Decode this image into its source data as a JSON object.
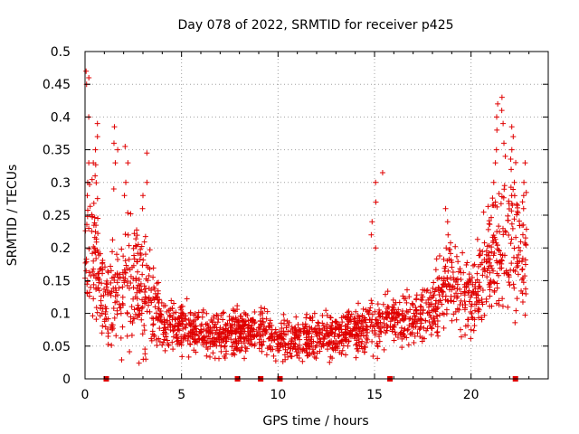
{
  "chart_data": {
    "type": "scatter",
    "title": "Day 078 of 2022, SRMTID for receiver p425",
    "xlabel": "GPS time / hours",
    "ylabel": "SRMTID / TECUs",
    "xlim": [
      0,
      24
    ],
    "ylim": [
      0,
      0.5
    ],
    "grid": true,
    "legend": "none",
    "marker": "plus",
    "color": "#e00000",
    "x_ticks": [
      0,
      5,
      10,
      15,
      20
    ],
    "x_tick_labels": [
      "0",
      "5",
      "10",
      "15",
      "20"
    ],
    "y_ticks": [
      0,
      0.05,
      0.1,
      0.15,
      0.2,
      0.25,
      0.3,
      0.35,
      0.4,
      0.45,
      0.5
    ],
    "y_tick_labels": [
      "0",
      "0.05",
      "0.1",
      "0.15",
      "0.2",
      "0.25",
      "0.3",
      "0.35",
      "0.4",
      "0.45",
      "0.5"
    ],
    "data_gaps_at_zero": [
      1.1,
      7.9,
      9.1,
      10.1,
      15.8,
      22.3
    ],
    "profile": [
      {
        "x": 0.0,
        "y": 0.19,
        "spread": 0.07
      },
      {
        "x": 0.5,
        "y": 0.2,
        "spread": 0.09
      },
      {
        "x": 1.0,
        "y": 0.12,
        "spread": 0.06
      },
      {
        "x": 1.5,
        "y": 0.13,
        "spread": 0.07
      },
      {
        "x": 2.0,
        "y": 0.13,
        "spread": 0.07
      },
      {
        "x": 2.5,
        "y": 0.16,
        "spread": 0.08
      },
      {
        "x": 3.0,
        "y": 0.14,
        "spread": 0.08
      },
      {
        "x": 3.5,
        "y": 0.11,
        "spread": 0.05
      },
      {
        "x": 4.0,
        "y": 0.08,
        "spread": 0.03
      },
      {
        "x": 5.0,
        "y": 0.08,
        "spread": 0.03
      },
      {
        "x": 6.0,
        "y": 0.07,
        "spread": 0.025
      },
      {
        "x": 7.0,
        "y": 0.065,
        "spread": 0.025
      },
      {
        "x": 8.0,
        "y": 0.07,
        "spread": 0.025
      },
      {
        "x": 9.0,
        "y": 0.075,
        "spread": 0.025
      },
      {
        "x": 10.0,
        "y": 0.06,
        "spread": 0.025
      },
      {
        "x": 11.0,
        "y": 0.055,
        "spread": 0.025
      },
      {
        "x": 12.0,
        "y": 0.065,
        "spread": 0.025
      },
      {
        "x": 13.0,
        "y": 0.07,
        "spread": 0.025
      },
      {
        "x": 14.0,
        "y": 0.075,
        "spread": 0.025
      },
      {
        "x": 15.0,
        "y": 0.08,
        "spread": 0.03
      },
      {
        "x": 16.0,
        "y": 0.09,
        "spread": 0.03
      },
      {
        "x": 17.0,
        "y": 0.09,
        "spread": 0.03
      },
      {
        "x": 18.0,
        "y": 0.11,
        "spread": 0.04
      },
      {
        "x": 19.0,
        "y": 0.16,
        "spread": 0.05
      },
      {
        "x": 20.0,
        "y": 0.12,
        "spread": 0.04
      },
      {
        "x": 21.0,
        "y": 0.18,
        "spread": 0.07
      },
      {
        "x": 22.0,
        "y": 0.2,
        "spread": 0.09
      },
      {
        "x": 22.8,
        "y": 0.2,
        "spread": 0.07
      }
    ],
    "spikes": [
      {
        "x": 0.1,
        "values": [
          0.47,
          0.46,
          0.45,
          0.4,
          0.33,
          0.3,
          0.28
        ]
      },
      {
        "x": 0.55,
        "values": [
          0.39,
          0.37,
          0.35,
          0.33,
          0.31
        ]
      },
      {
        "x": 1.6,
        "values": [
          0.385,
          0.36,
          0.35,
          0.33,
          0.29
        ]
      },
      {
        "x": 2.1,
        "values": [
          0.355,
          0.33,
          0.3,
          0.28
        ]
      },
      {
        "x": 3.1,
        "values": [
          0.345,
          0.3,
          0.28,
          0.26
        ]
      },
      {
        "x": 14.95,
        "values": [
          0.3,
          0.27,
          0.24,
          0.22,
          0.2
        ]
      },
      {
        "x": 15.5,
        "values": [
          0.315
        ]
      },
      {
        "x": 18.7,
        "values": [
          0.26,
          0.24,
          0.22,
          0.2
        ]
      },
      {
        "x": 21.3,
        "values": [
          0.42,
          0.4,
          0.38,
          0.35,
          0.33,
          0.3,
          0.27
        ]
      },
      {
        "x": 21.7,
        "values": [
          0.43,
          0.41,
          0.39,
          0.36,
          0.34
        ]
      },
      {
        "x": 22.2,
        "values": [
          0.385,
          0.37,
          0.35,
          0.32,
          0.3,
          0.28
        ]
      },
      {
        "x": 22.7,
        "values": [
          0.33,
          0.3,
          0.28,
          0.26
        ]
      }
    ],
    "points_per_hour": 85,
    "x_end": 22.9
  }
}
